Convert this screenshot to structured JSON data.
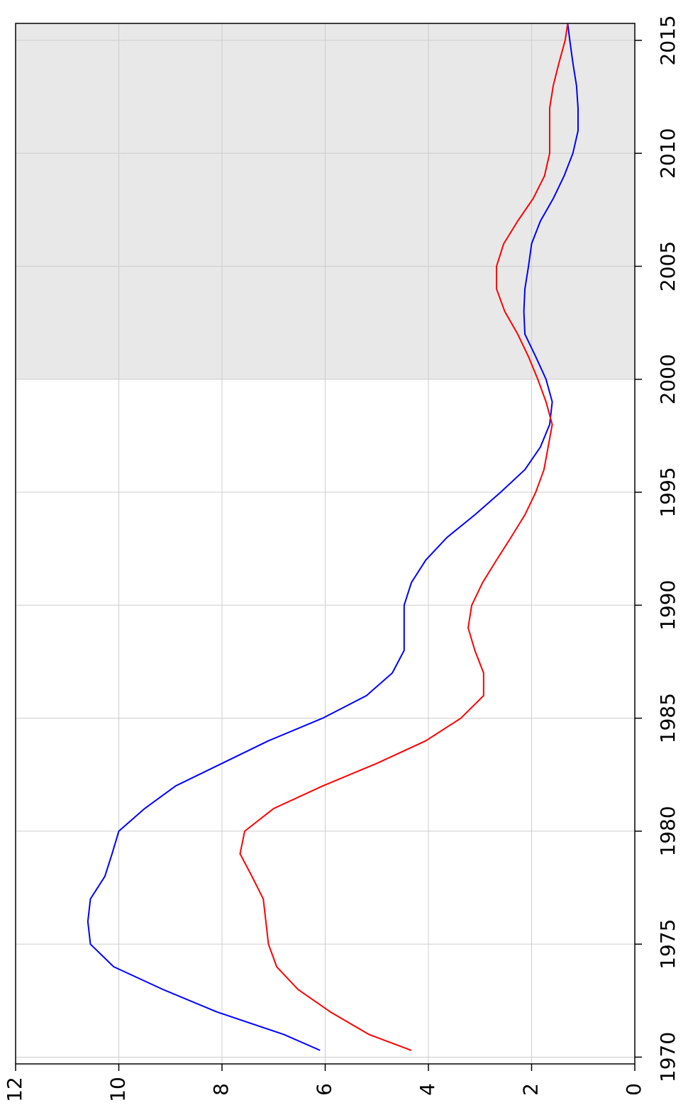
{
  "chart_data": {
    "type": "line",
    "x": [
      1970.3,
      1971,
      1972,
      1973,
      1974,
      1975,
      1976,
      1977,
      1978,
      1979,
      1980,
      1981,
      1982,
      1983,
      1984,
      1985,
      1986,
      1987,
      1988,
      1989,
      1990,
      1991,
      1992,
      1993,
      1994,
      1995,
      1996,
      1997,
      1998,
      1999,
      2000,
      2001,
      2002,
      2003,
      2004,
      2005,
      2006,
      2007,
      2008,
      2009,
      2010,
      2011,
      2012,
      2013,
      2014,
      2015,
      2015.75
    ],
    "series": [
      {
        "color": "#0000ff",
        "values": [
          6.1,
          6.8,
          8.1,
          9.15,
          10.1,
          10.55,
          10.6,
          10.55,
          10.27,
          10.13,
          10.0,
          9.5,
          8.9,
          8.0,
          7.1,
          6.05,
          5.2,
          4.7,
          4.47,
          4.47,
          4.47,
          4.33,
          4.05,
          3.64,
          3.1,
          2.6,
          2.13,
          1.83,
          1.65,
          1.6,
          1.72,
          1.92,
          2.13,
          2.15,
          2.13,
          2.06,
          2.0,
          1.83,
          1.58,
          1.37,
          1.2,
          1.1,
          1.1,
          1.13,
          1.2,
          1.26,
          1.3
        ]
      },
      {
        "color": "#ff0000",
        "values": [
          4.33,
          5.15,
          5.9,
          6.53,
          6.94,
          7.1,
          7.15,
          7.2,
          7.42,
          7.65,
          7.56,
          7.0,
          6.05,
          5.0,
          4.05,
          3.37,
          2.93,
          2.93,
          3.1,
          3.23,
          3.16,
          2.95,
          2.68,
          2.4,
          2.13,
          1.92,
          1.76,
          1.68,
          1.6,
          1.72,
          1.88,
          2.06,
          2.27,
          2.52,
          2.68,
          2.68,
          2.54,
          2.27,
          1.97,
          1.75,
          1.65,
          1.65,
          1.65,
          1.58,
          1.47,
          1.35,
          1.3
        ]
      }
    ],
    "xlim": [
      1969.7,
      2015.75
    ],
    "xticks": [
      1970,
      1975,
      1980,
      1985,
      1990,
      1995,
      2000,
      2005,
      2010,
      2015
    ],
    "ylim": [
      0,
      12
    ],
    "yticks": [
      0,
      2,
      4,
      6,
      8,
      10,
      12
    ],
    "grid": true,
    "shaded_xlim": [
      2000,
      2015.75
    ],
    "shade_color": "#e8e8e8",
    "orientation": "rotated"
  }
}
